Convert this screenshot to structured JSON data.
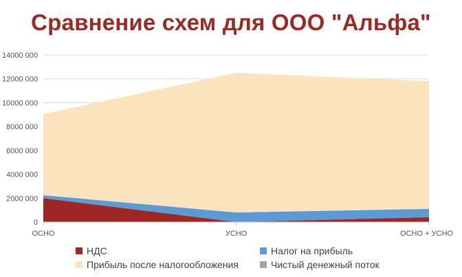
{
  "chart_data": {
    "type": "area",
    "stacked": true,
    "title": "Сравнение схем для ООО \"Альфа\"",
    "categories": [
      "ОСНО",
      "УСНО",
      "ОСНО + УСНО"
    ],
    "series": [
      {
        "name": "НДС",
        "color": "#9e2623",
        "values": [
          2000000,
          0,
          400000
        ]
      },
      {
        "name": "Налог на прибыль",
        "color": "#5b9bd5",
        "values": [
          250000,
          800000,
          700000
        ]
      },
      {
        "name": "Прибыль после налогообложения",
        "color": "#fae3bd",
        "values": [
          6800000,
          11700000,
          10700000
        ]
      },
      {
        "name": "Чистый денежный поток",
        "color": "#a5a5a5",
        "values": [
          0,
          0,
          0
        ]
      }
    ],
    "ylim": [
      0,
      14000000
    ],
    "yticks": [
      0,
      2000000,
      4000000,
      6000000,
      8000000,
      10000000,
      12000000,
      14000000
    ],
    "ytick_labels": [
      "0",
      "2000 000",
      "4000 000",
      "6000 000",
      "8000 000",
      "10000 000",
      "12000 000",
      "14000 000"
    ],
    "grid": true,
    "legend_position": "bottom"
  }
}
